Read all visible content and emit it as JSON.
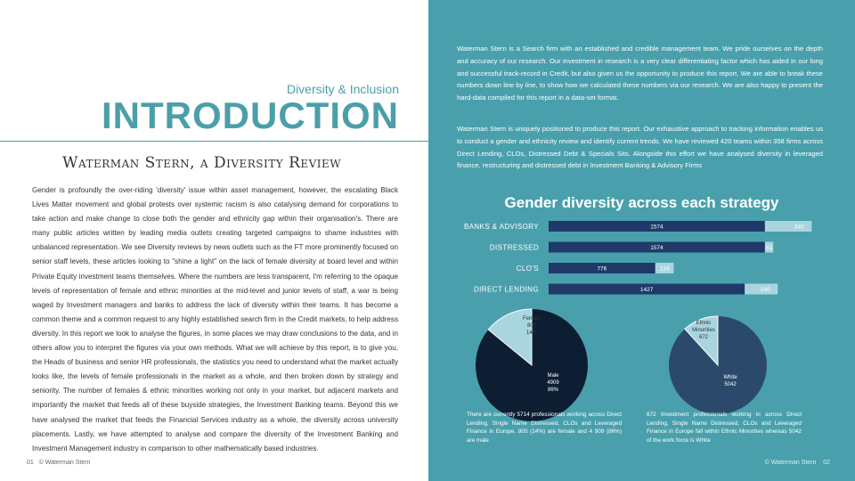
{
  "left": {
    "subtitle": "Diversity & Inclusion",
    "title": "INTRODUCTION",
    "heading": "Waterman Stern, a Diversity Review",
    "body": "Gender is profoundly the over-riding 'diversity' issue within asset management, however, the escalating Black Lives Matter movement and global protests over systemic racism is also catalysing demand for corporations to take action and make change to close both the gender and ethnicity gap within their organisation's. There are many public articles written by leading media outlets creating targeted campaigns to shame industries with unbalanced representation. We see Diversity reviews by news outlets such as the FT more prominently focused on senior staff levels, these articles looking to \"shine a light\" on the lack of female diversity at board level and within Private Equity investment teams themselves. Where the numbers are less transparent, I'm referring to the opaque levels of representation of female and ethnic minorities at the mid-level and junior levels of staff, a war is being waged by Investment managers and banks to address the lack of diversity within their teams. It has become a common theme and a common request to any highly established search firm in the Credit markets, to help address diversity. In this report we look to analyse the figures, in some places we may draw conclusions to the data, and in others allow you to interpret the figures via your own methods. What we will achieve by this report, is to give you, the Heads of business and senior HR professionals, the statistics you need to understand what the market actually looks like, the levels of female professionals in the market as a whole, and then broken down by strategy and seniority. The number of females & ethnic minorities working not only in your market, but adjacent markets and importantly the market that feeds all of these buyside strategies, the Investment Banking teams. Beyond this we have analysed the market that feeds the Financial Services industry as a whole, the diversity across university placements. Lastly, we have attempted to analyse and compare the diversity of the Investment Banking and Investment Management industry in comparison to other mathematically based industries.",
    "footer_page": "01",
    "footer_copy": "© Waterman Stern"
  },
  "right": {
    "para1": "Waterman Stern is a Search firm with an established and credible management team. We pride ourselves on the depth and accuracy of our research. Our investment in research is a very clear differentiating factor which has aided in our long and successful track-record in Credit, but also given us the opportunity to produce this report. We are able to break these numbers down line by line, to show how we calculated these numbers via our research. We are also happy to present the hard-data compiled for this report in a data-set format.",
    "para2": "Waterman Stern is uniquely positioned to produce this report. Our exhaustive approach to tracking information enables us to conduct a gender and ethnicity review and identify current trends. We have reviewed 420 teams within 358 firms across Direct Lending, CLOs, Distressed Debt & Specials Sits. Alongside this effort we have analysed diversity in leveraged finance, restructuring and distressed debt in Investment Banking & Advisory Firms",
    "caption_left": "There are currently 5714 professionals working across Direct Lending, Single Name Distressed, CLOs and Leveraged Finance in Europe. 805 (14%) are female and 4 909 (86%) are male",
    "caption_right": "672 Investment professionals working in across Direct Lending, Single Name Distressed, CLOs and Leveraged Finance in Europe fall within Ethnic Minorities whereas 5042 of the work force is White",
    "footer_copy": "© Waterman Stern",
    "footer_page": "02"
  },
  "colors": {
    "teal": "#49a0ac",
    "bar_dark": "#1f3a68",
    "bar_light": "#a9d5df",
    "pie_dark": "#0d1e33",
    "pie_blue": "#2b4a6b"
  },
  "chart_data": [
    {
      "type": "bar",
      "orientation": "horizontal",
      "stacked": true,
      "title": "Gender diversity across each strategy",
      "categories": [
        "BANKS & ADVISORY",
        "DISTRESSED",
        "CLO'S",
        "DIRECT LENDING"
      ],
      "series": [
        {
          "values": [
            1574,
            1574,
            776,
            1427
          ]
        },
        {
          "values": [
            340,
            61,
            134,
            240
          ]
        }
      ]
    },
    {
      "type": "pie",
      "slices": [
        {
          "label": "Male",
          "value": 4909,
          "percent": "86%"
        },
        {
          "label": "Female",
          "value": 805,
          "percent": "14%"
        }
      ]
    },
    {
      "type": "pie",
      "slices": [
        {
          "label": "White",
          "value": 5042
        },
        {
          "label": "Ethnic Minorities",
          "value": 672
        }
      ]
    }
  ]
}
